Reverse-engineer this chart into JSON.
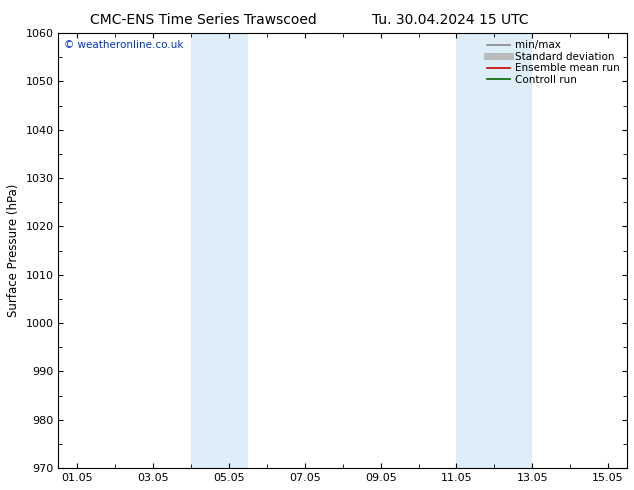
{
  "title_left": "CMC-ENS Time Series Trawscoed",
  "title_right": "Tu. 30.04.2024 15 UTC",
  "ylabel": "Surface Pressure (hPa)",
  "ylim": [
    970,
    1060
  ],
  "yticks": [
    970,
    980,
    990,
    1000,
    1010,
    1020,
    1030,
    1040,
    1050,
    1060
  ],
  "xtick_labels": [
    "01.05",
    "03.05",
    "05.05",
    "07.05",
    "09.05",
    "11.05",
    "13.05",
    "15.05"
  ],
  "xtick_positions": [
    0,
    2,
    4,
    6,
    8,
    10,
    12,
    14
  ],
  "xlim": [
    -0.5,
    14.5
  ],
  "shaded_bands": [
    {
      "xmin": 3.0,
      "xmax": 4.5
    },
    {
      "xmin": 10.0,
      "xmax": 12.0
    }
  ],
  "shade_color": "#ddeef8",
  "background_color": "#ffffff",
  "watermark": "© weatheronline.co.uk",
  "watermark_color": "#0033cc",
  "legend_entries": [
    {
      "label": "min/max",
      "color": "#888888",
      "lw": 1.2
    },
    {
      "label": "Standard deviation",
      "color": "#bbbbbb",
      "lw": 5
    },
    {
      "label": "Ensemble mean run",
      "color": "#cc0000",
      "lw": 1.2
    },
    {
      "label": "Controll run",
      "color": "#006600",
      "lw": 1.2
    }
  ],
  "title_fontsize": 10,
  "axis_label_fontsize": 8.5,
  "tick_fontsize": 8,
  "legend_fontsize": 7.5
}
